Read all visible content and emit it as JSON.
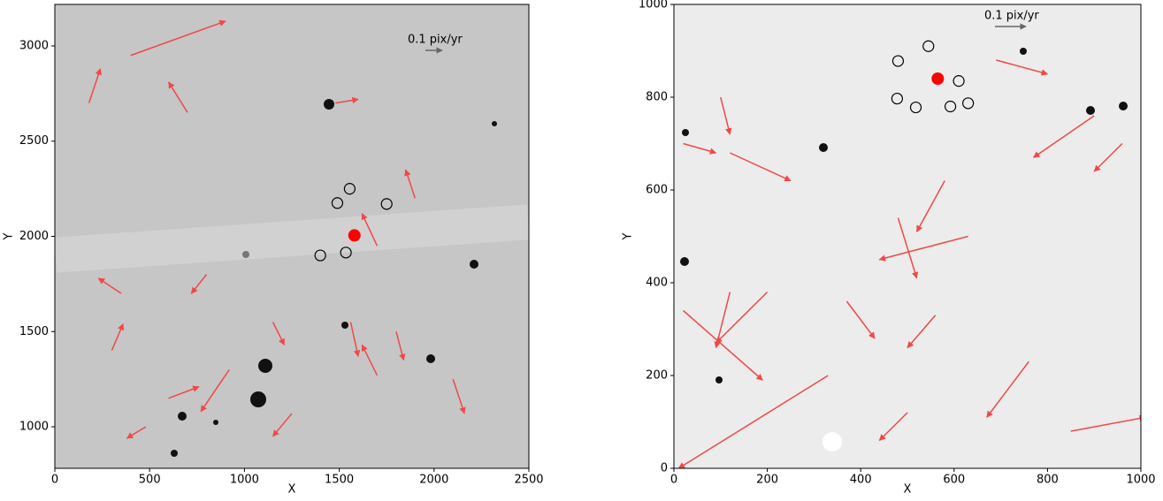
{
  "chart_data": [
    {
      "type": "quiver",
      "xlabel": "X",
      "ylabel": "Y",
      "xlim": [
        0,
        2500
      ],
      "ylim": [
        782,
        3218
      ],
      "xticks": [
        0,
        500,
        1000,
        1500,
        2000,
        2500
      ],
      "yticks": [
        1000,
        1500,
        2000,
        2500,
        3000
      ],
      "scale_label": "0.1 pix/yr",
      "background": "#c6c6c6",
      "arrow_color": "#f04848",
      "arrows": {
        "x": [
          400,
          1480,
          1700,
          920,
          1800,
          180,
          350,
          1560,
          1700,
          600,
          1150,
          1250,
          300,
          480,
          700,
          1900,
          2100,
          800
        ],
        "y": [
          2950,
          2700,
          1950,
          1300,
          1500,
          2700,
          1700,
          1550,
          1270,
          1150,
          1550,
          1070,
          1400,
          1000,
          2650,
          2200,
          1250,
          1800
        ],
        "dx": [
          500,
          120,
          -80,
          -150,
          40,
          60,
          -120,
          40,
          -80,
          160,
          60,
          -100,
          60,
          -100,
          -100,
          -50,
          60,
          -80
        ],
        "dy": [
          180,
          20,
          170,
          -220,
          -150,
          180,
          80,
          -180,
          160,
          60,
          -120,
          -120,
          140,
          -60,
          160,
          150,
          -180,
          -100
        ]
      },
      "target": {
        "x": 1580,
        "y": 2005,
        "color": "#ff0000"
      },
      "circles": {
        "x": [
          1490,
          1555,
          1750,
          1400,
          1535
        ],
        "y": [
          2175,
          2250,
          2170,
          1900,
          1915
        ]
      }
    },
    {
      "type": "quiver",
      "xlabel": "X",
      "ylabel": "Y",
      "xlim": [
        0,
        1000
      ],
      "ylim": [
        0,
        1000
      ],
      "xticks": [
        0,
        200,
        400,
        600,
        800,
        1000
      ],
      "yticks": [
        0,
        200,
        400,
        600,
        800,
        1000
      ],
      "scale_label": "0.1 pix/yr",
      "background": "#ececec",
      "arrow_color": "#f04848",
      "arrows": {
        "x": [
          20,
          120,
          330,
          690,
          20,
          500,
          580,
          200,
          760,
          120,
          850,
          960,
          370,
          630,
          900,
          100,
          480,
          560
        ],
        "y": [
          700,
          680,
          200,
          880,
          340,
          120,
          620,
          380,
          230,
          380,
          80,
          700,
          360,
          500,
          760,
          800,
          540,
          330
        ],
        "dx": [
          70,
          130,
          -320,
          110,
          170,
          -60,
          -60,
          -110,
          -90,
          -30,
          160,
          -60,
          60,
          -190,
          -130,
          20,
          40,
          -60
        ],
        "dy": [
          -20,
          -60,
          -200,
          -30,
          -150,
          -60,
          -110,
          -110,
          -120,
          -120,
          30,
          -60,
          -80,
          -50,
          -90,
          -80,
          -130,
          -70
        ]
      },
      "target": {
        "x": 565,
        "y": 840,
        "color": "#ff0000"
      },
      "circles": {
        "x": [
          545,
          480,
          610,
          478,
          518,
          592,
          630
        ],
        "y": [
          910,
          878,
          835,
          797,
          778,
          780,
          787
        ]
      }
    }
  ]
}
